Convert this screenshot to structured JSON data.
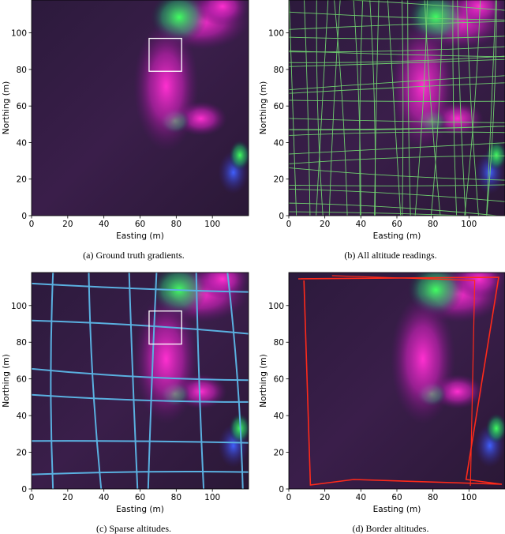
{
  "chart_data": [
    {
      "type": "image",
      "caption": "(a) Ground truth gradients.",
      "xlabel": "Easting (m)",
      "ylabel": "Northing (m)",
      "xlim": [
        0,
        120
      ],
      "ylim": [
        0,
        118
      ],
      "xticks": [
        0,
        20,
        40,
        60,
        80,
        100
      ],
      "yticks": [
        0,
        20,
        40,
        60,
        80,
        100
      ],
      "box": {
        "x": [
          65,
          83
        ],
        "y": [
          79,
          97
        ]
      }
    },
    {
      "type": "image",
      "caption": "(b) All altitude readings.",
      "xlabel": "Easting (m)",
      "ylabel": "Northing (m)",
      "xlim": [
        0,
        120
      ],
      "ylim": [
        0,
        118
      ],
      "xticks": [
        0,
        20,
        40,
        60,
        80,
        100
      ],
      "yticks": [
        0,
        20,
        40,
        60,
        80,
        100
      ],
      "overlay": {
        "style": "dense",
        "color": "#6fcf6f"
      }
    },
    {
      "type": "image",
      "caption": "(c) Sparse altitudes.",
      "xlabel": "Easting (m)",
      "ylabel": "Northing (m)",
      "xlim": [
        0,
        120
      ],
      "ylim": [
        0,
        118
      ],
      "xticks": [
        0,
        20,
        40,
        60,
        80,
        100
      ],
      "yticks": [
        0,
        20,
        40,
        60,
        80,
        100
      ],
      "box": {
        "x": [
          65,
          83
        ],
        "y": [
          79,
          97
        ]
      },
      "overlay": {
        "style": "sparse",
        "color": "#5ab0e0"
      }
    },
    {
      "type": "image",
      "caption": "(d) Border altitudes.",
      "xlabel": "Easting (m)",
      "ylabel": "Northing (m)",
      "xlim": [
        0,
        120
      ],
      "ylim": [
        0,
        118
      ],
      "xticks": [
        0,
        20,
        40,
        60,
        80,
        100
      ],
      "yticks": [
        0,
        20,
        40,
        60,
        80,
        100
      ],
      "overlay": {
        "style": "border",
        "color": "#ff2a1a"
      }
    }
  ]
}
